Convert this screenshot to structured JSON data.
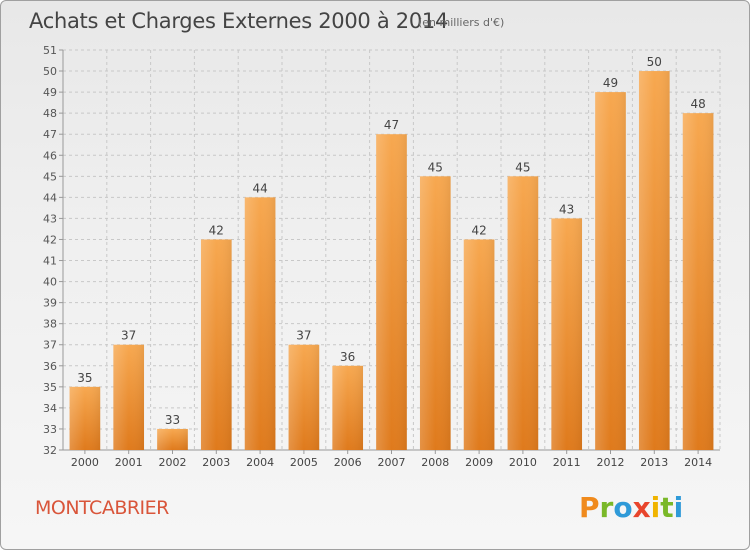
{
  "header": {
    "title": "Achats et Charges Externes 2000 à 2014",
    "subtitle": "(en milliers d'€)"
  },
  "footer": {
    "commune": "MONTCABRIER",
    "logo_text": "Proxiti"
  },
  "colors": {
    "bar_light": "#f7a850",
    "bar_dark": "#e07e20",
    "commune": "#d9553a",
    "logo_p": "#f08a1c",
    "logo_r": "#7ab828",
    "logo_o": "#2f9ad8",
    "logo_x": "#e8452c",
    "logo_i": "#f0b400",
    "logo_t": "#7ab828",
    "logo_i2": "#2f9ad8"
  },
  "chart_data": {
    "type": "bar",
    "categories": [
      "2000",
      "2001",
      "2002",
      "2003",
      "2004",
      "2005",
      "2006",
      "2007",
      "2008",
      "2009",
      "2010",
      "2011",
      "2012",
      "2013",
      "2014"
    ],
    "values": [
      35,
      37,
      33,
      42,
      44,
      37,
      36,
      47,
      45,
      42,
      45,
      43,
      49,
      50,
      48
    ],
    "title": "Achats et Charges Externes 2000 à 2014",
    "ylim": [
      32,
      51
    ],
    "yticks": [
      32,
      33,
      34,
      35,
      36,
      37,
      38,
      39,
      40,
      41,
      42,
      43,
      44,
      45,
      46,
      47,
      48,
      49,
      50,
      51
    ],
    "grid": true,
    "data_labels": true
  }
}
